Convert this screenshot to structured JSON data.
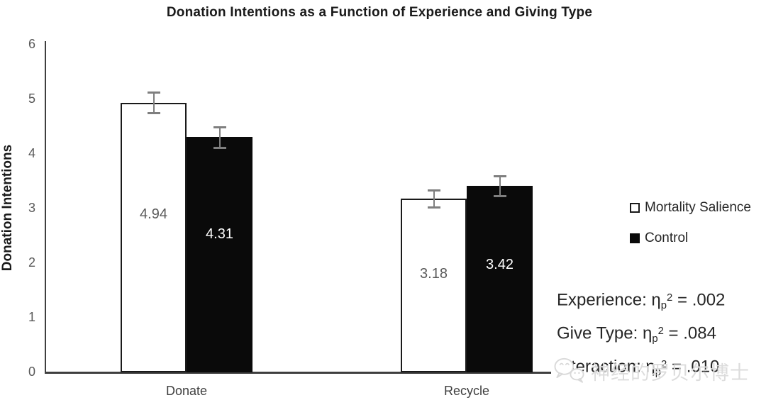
{
  "chart_data": {
    "type": "bar",
    "title": "Donation Intentions as a Function of Experience and Giving Type",
    "ylabel": "Donation Intentions",
    "xlabel": "",
    "categories": [
      "Donate",
      "Recycle"
    ],
    "series": [
      {
        "name": "Mortality Salience",
        "fill": "#ffffff",
        "label_color": "#595959",
        "values": [
          4.94,
          3.18
        ],
        "errors": [
          0.19,
          0.16
        ]
      },
      {
        "name": "Control",
        "fill": "#0a0a0a",
        "label_color": "#ffffff",
        "values": [
          4.31,
          3.42
        ],
        "errors": [
          0.19,
          0.18
        ]
      }
    ],
    "ylim": [
      0,
      6
    ],
    "yticks": [
      0,
      1,
      2,
      3,
      4,
      5,
      6
    ],
    "grid": false,
    "legend_position": "right",
    "error_bars": true
  },
  "stats": {
    "notation": {
      "eta": "η",
      "sub": "p",
      "sup": "2",
      "eq": " = "
    },
    "lines": [
      {
        "label": "Experience: ",
        "value": ".002"
      },
      {
        "label": "Give Type: ",
        "value": ".084"
      },
      {
        "label": "Interaction: ",
        "value": ".010"
      }
    ]
  },
  "watermark": {
    "icon": "wechat-icon",
    "text": "神经的罗贝尔博士"
  },
  "colors": {
    "bar_border": "#1a1a1a",
    "control_fill": "#0a0a0a",
    "error_bar": "#7f7f7f",
    "axis_line": "#3f3f3f",
    "tick_label": "#595959",
    "category_label": "#404040",
    "title_text": "#1a1a1a",
    "legend_text": "#262626",
    "watermark": "#dcdcdc"
  }
}
